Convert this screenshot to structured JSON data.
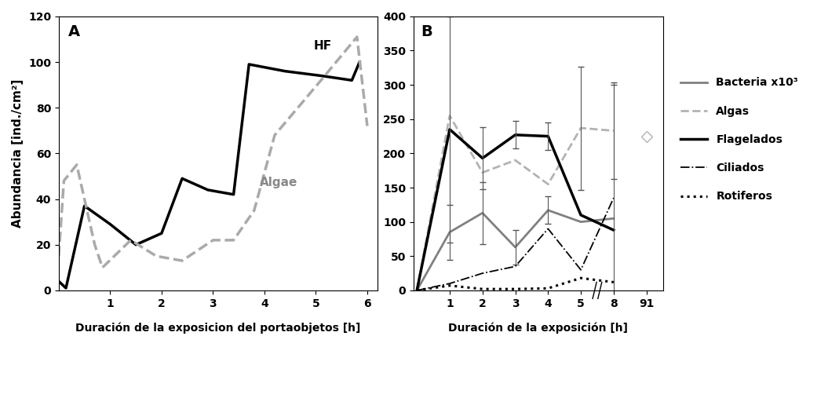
{
  "chart_data": [
    {
      "type": "line",
      "title": "A",
      "xlabel": "Duración de la exposicion del portaobjetos [h]",
      "ylabel": "Abundancia [ind./cm²]",
      "xlim": [
        0,
        6.2
      ],
      "xticks": [
        1,
        2,
        3,
        4,
        5,
        6
      ],
      "ylim": [
        0,
        120
      ],
      "yticks": [
        0,
        20,
        40,
        60,
        80,
        100,
        120
      ],
      "series": [
        {
          "name": "HF",
          "color": "#000000",
          "line_style": "solid",
          "x": [
            0.0,
            0.14,
            0.5,
            1.0,
            1.5,
            2.0,
            2.4,
            2.9,
            3.4,
            3.7,
            4.4,
            5.1,
            5.7,
            5.85
          ],
          "values": [
            4,
            1,
            37,
            29,
            20,
            25,
            49,
            44,
            42,
            99,
            96,
            94,
            92,
            100
          ]
        },
        {
          "name": "Algae",
          "color": "#aaaaaa",
          "line_style": "dashed",
          "x": [
            0.0,
            0.1,
            0.35,
            0.7,
            0.85,
            1.4,
            1.9,
            2.4,
            3.0,
            3.4,
            3.8,
            4.2,
            5.1,
            5.8,
            6.0
          ],
          "values": [
            15,
            48,
            55,
            20,
            10,
            22,
            15,
            13,
            22,
            22,
            35,
            68,
            92,
            111,
            72
          ]
        }
      ]
    },
    {
      "type": "line",
      "title": "B",
      "xlabel": "Duración de la exposición [h]",
      "categories": [
        null,
        "1",
        "2",
        "3",
        "4",
        "5",
        "8",
        "91"
      ],
      "ylim": [
        0,
        400
      ],
      "yticks": [
        0,
        50,
        100,
        150,
        200,
        250,
        300,
        350,
        400
      ],
      "legend": "right",
      "series": [
        {
          "name": "Bacteria x10³",
          "color": "#808080",
          "line_style": "solid",
          "values": [
            0,
            85,
            113,
            63,
            117,
            100,
            105,
            null
          ],
          "errors": [
            null,
            40,
            45,
            25,
            20,
            null,
            null,
            null
          ]
        },
        {
          "name": "Algas",
          "color": "#b3b3b3",
          "line_style": "dashed",
          "values": [
            0,
            255,
            172,
            190,
            155,
            237,
            233,
            null
          ],
          "errors": [
            null,
            null,
            null,
            null,
            null,
            90,
            70,
            null
          ]
        },
        {
          "name": "Algas",
          "type": "scatter",
          "marker": "diamond",
          "color": "#b3b3b3",
          "values": [
            null,
            null,
            null,
            null,
            null,
            null,
            null,
            225
          ]
        },
        {
          "name": "Flagelados",
          "color": "#000000",
          "line_style": "solid",
          "values": [
            0,
            235,
            193,
            227,
            225,
            110,
            88,
            null
          ],
          "errors": [
            null,
            165,
            45,
            20,
            20,
            null,
            null,
            null
          ]
        },
        {
          "name": "Ciliados",
          "color": "#000000",
          "line_style": "dashdot",
          "values": [
            0,
            10,
            25,
            35,
            90,
            30,
            135,
            null
          ],
          "errors": [
            null,
            null,
            null,
            null,
            null,
            null,
            165,
            null
          ]
        },
        {
          "name": "Rotiferos",
          "color": "#000000",
          "line_style": "dotted",
          "values": [
            0,
            7,
            2,
            2,
            3,
            18,
            12,
            null
          ]
        }
      ]
    }
  ]
}
